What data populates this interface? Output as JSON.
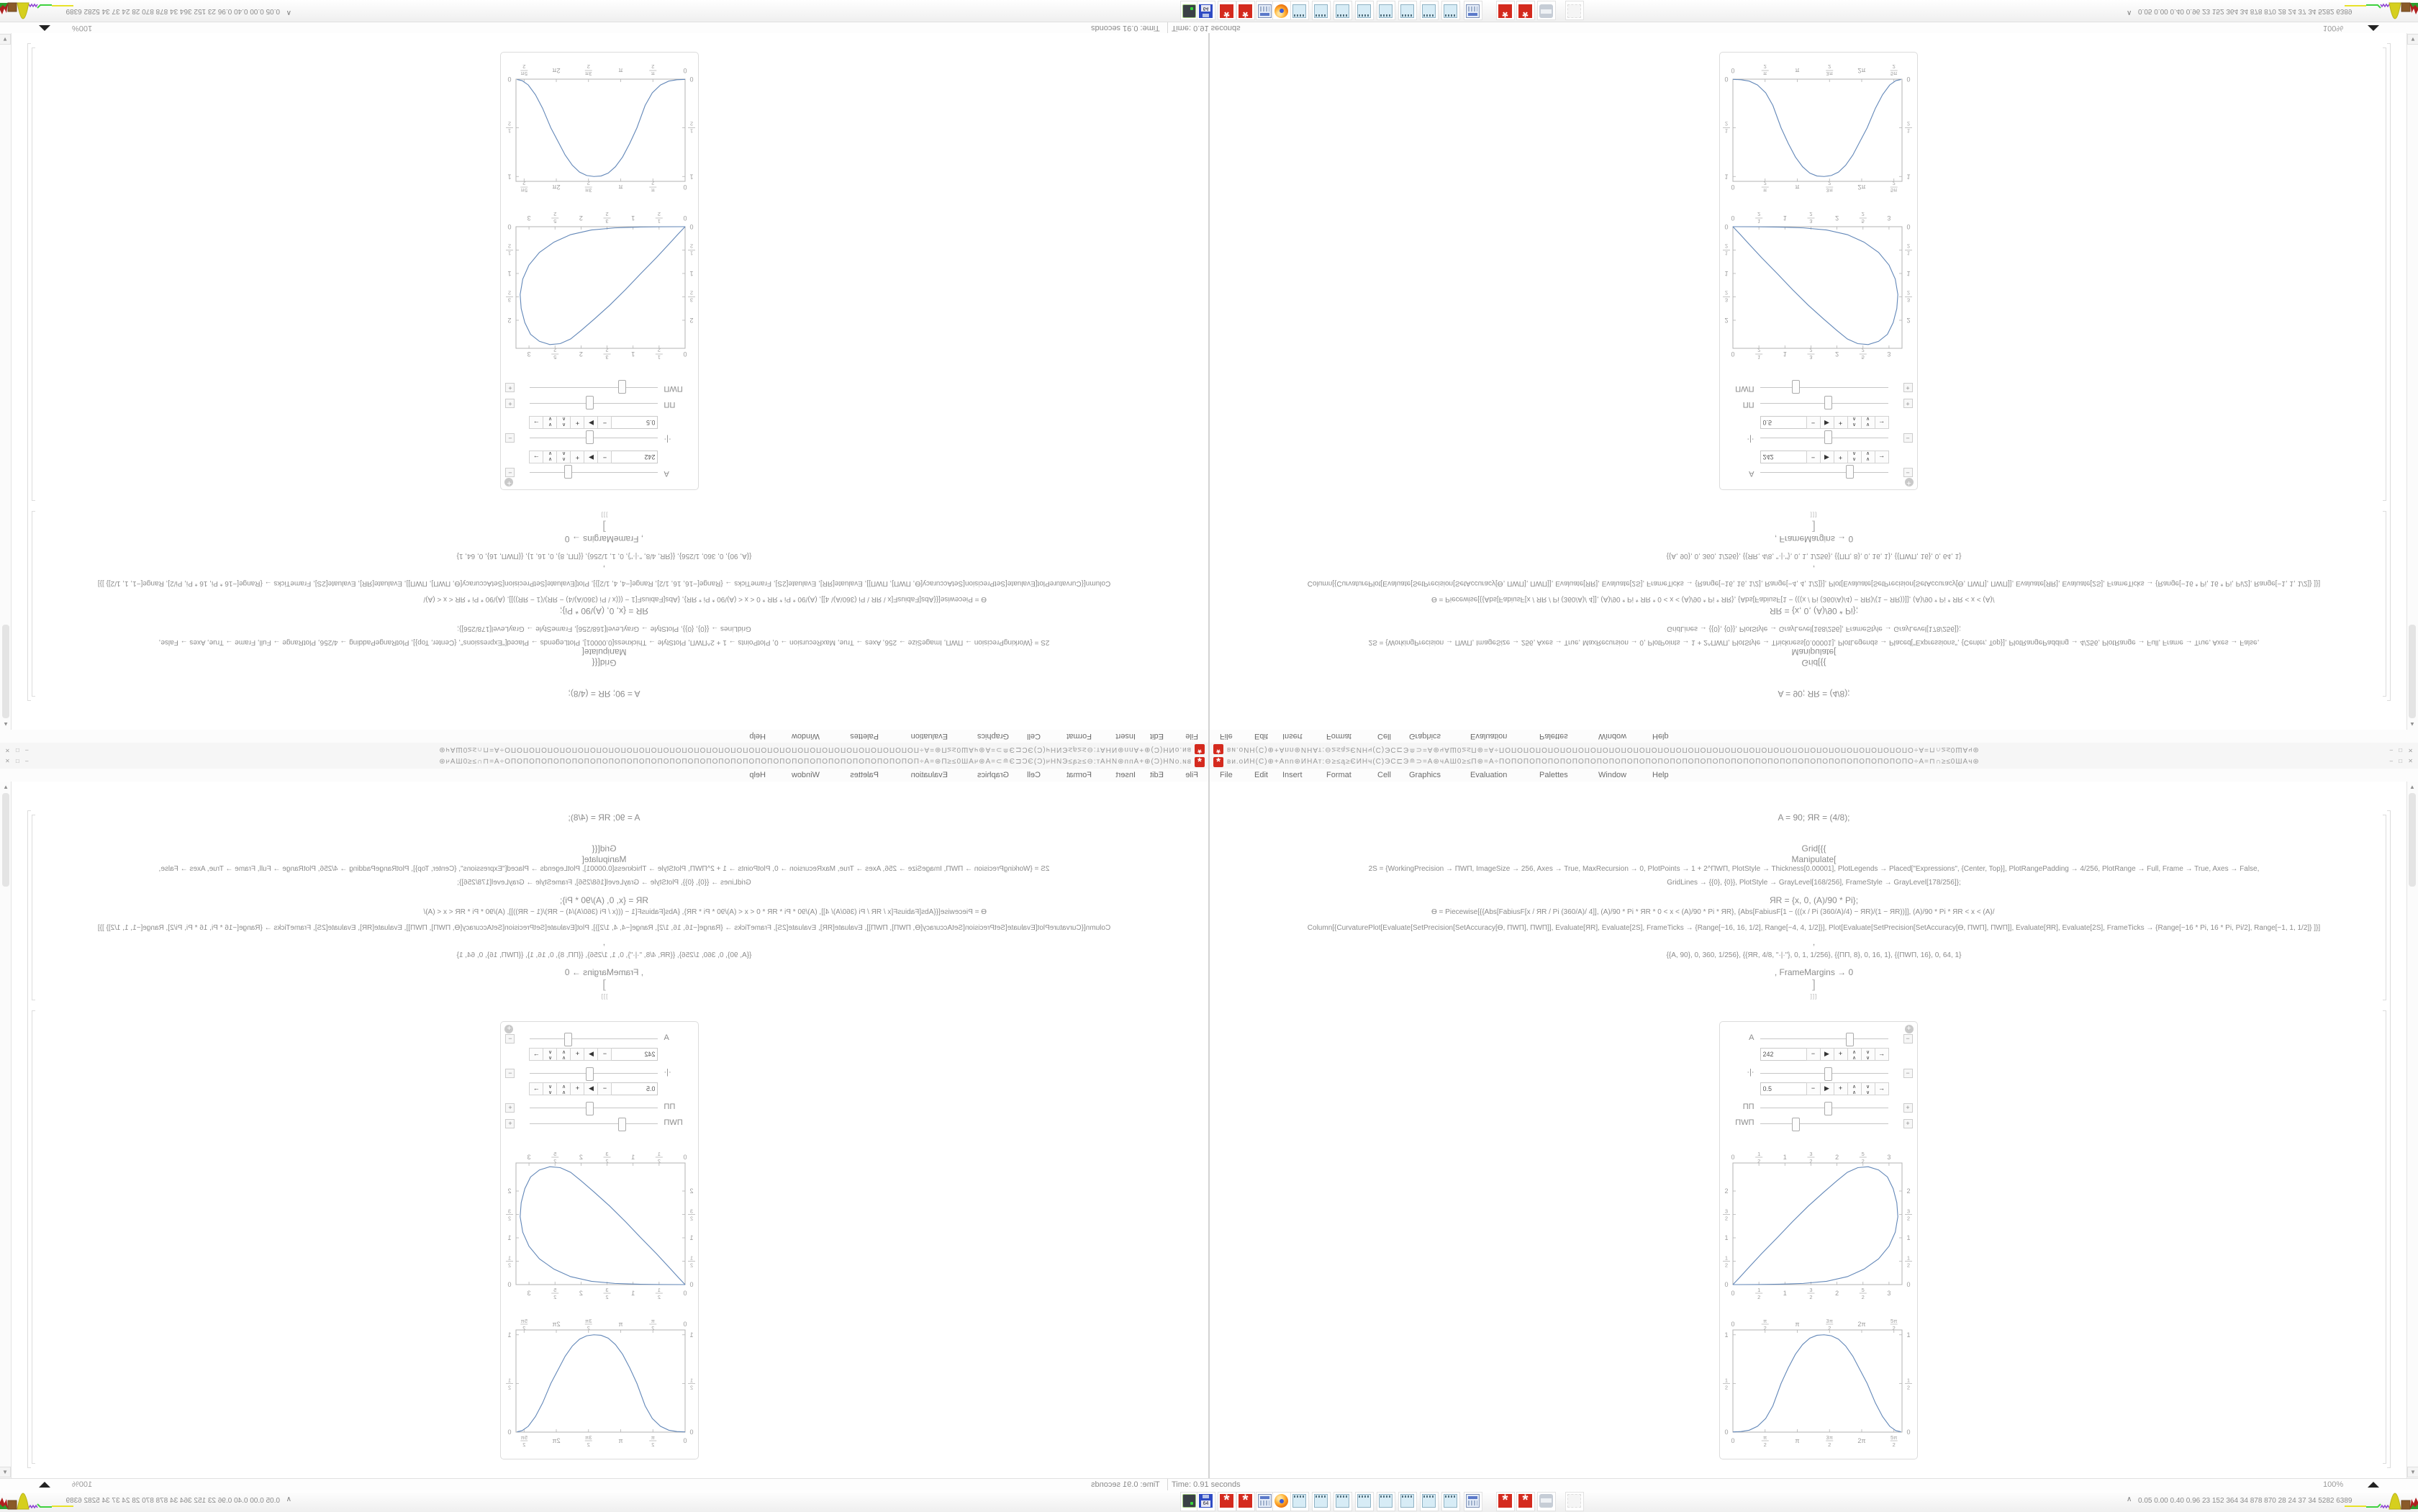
{
  "window": {
    "title": "ви.оИН(C)⊕+Аnn⊛ИНАт:⊖≥≤ą≥ЄИНч(C)ЭС⊏Э≘⊃=А⊛чАШ0≥≤П⊛=А÷ПОПОПОПОПОПОПОПОПОПОПОПОПОПОПОПОПОПОПОПОПОПОПОПОПОПОПОПОПОПОПОПОПОПО÷А=⊓∩≥≤0ШАч⊛",
    "title_icon": "mathematica-gear-icon",
    "window_buttons": "–  □  ✕",
    "menu_items": [
      "File",
      "Edit",
      "Insert",
      "Format",
      "Cell",
      "Graphics",
      "Evaluation",
      "Palettes",
      "Window",
      "Help"
    ],
    "code_lines": [
      {
        "text": "A = 90; ЯR = (4/8);",
        "size": "m"
      },
      {
        "text": "Grid[{{",
        "size": "m"
      },
      {
        "text": "Manipulate[",
        "size": "m"
      },
      {
        "text": "2S = {WorkingPrecision → ПWП, ImageSize → 256, Axes → True, MaxRecursion → 0, PlotPoints → 1 + 2^ПWП, PlotStyle → Thickness[0.00001], PlotLegends → Placed[\"Expressions\", {Center, Top}], PlotRangePadding → 4/256, PlotRange → Full, Frame → True, Axes → False,",
        "size": "s"
      },
      {
        "text": "GridLines → {{0}, {0}}, PlotStyle → GrayLevel[168/256], FrameStyle → GrayLevel[178/256]};",
        "size": "s"
      },
      {
        "text": "ЯR = {x, 0, (A)/90 * Pi};",
        "size": "m"
      },
      {
        "text": "Ѳ = Piecewise[{{Abs[FabiusF[x / ЯR / Pi (360/A)/ 4]], (A)/90 * Pi * ЯR * 0 < x < (A)/90 * Pi * ЯR}, {Abs[FabiusF[1 − (((x / Pi (360/A)/4) − ЯR)/(1 − ЯR))]], (A)/90 * Pi * ЯR < x < (A)/",
        "size": "s"
      },
      {
        "text": "Column[{CurvaturePlot[Evaluate[SetPrecision[SetAccuracy[Ѳ, ПWП], ПWП]], Evaluate[ЯR], Evaluate[2S], FrameTicks → {Range[−16, 16, 1/2], Range[−4, 4, 1/2]}], Plot[Evaluate[SetPrecision[SetAccuracy[Ѳ, ПWП], ПWП]], Evaluate[ЯR], Evaluate[2S], FrameTicks → {Range[−16 * Pi, 16 * Pi, Pi/2], Range[−1, 1, 1/2]} ]}]",
        "size": "s"
      },
      {
        "text": ",",
        "size": "m"
      },
      {
        "text": "{{A, 90}, 0, 360, 1/256}, {{ЯR, 4/8, \"·|·\"}, 0, 1, 1/256}, {{ПП, 8}, 0, 16, 1}, {{ПWП, 16}, 0, 64, 1}",
        "size": "s"
      },
      {
        "text": ", FrameMargins → 0",
        "size": "m"
      },
      {
        "text": "]",
        "size": "l"
      },
      {
        "text": "]]]",
        "size": "xs"
      }
    ],
    "manipulate": {
      "menu_icon": "plus-circle-icon",
      "sliders": [
        {
          "label": "A",
          "value": "242",
          "percent": 67,
          "expanded": true
        },
        {
          "label": "·|·",
          "value": "0.5",
          "percent": 50,
          "expanded": true
        },
        {
          "label": "ПП",
          "value": "",
          "percent": 50,
          "expanded": false
        },
        {
          "label": "ПWП",
          "value": "",
          "percent": 25,
          "expanded": false
        }
      ],
      "animator_buttons": [
        {
          "name": "step-down-button",
          "glyph": "−"
        },
        {
          "name": "play-button",
          "glyph": "▶"
        },
        {
          "name": "step-up-button",
          "glyph": "+"
        },
        {
          "name": "faster-button",
          "glyph": "∧∧"
        },
        {
          "name": "slower-button",
          "glyph": "∨∨"
        },
        {
          "name": "direction-button",
          "glyph": "→"
        }
      ]
    },
    "scrollbar": {
      "up": "▲",
      "down": "▼"
    }
  },
  "status_bar": {
    "time_label": "Time: 0.91 seconds",
    "zoom_value": "100%"
  },
  "taskbar": {
    "overflow_chevron": "∧",
    "tray_text": "0.05 0.00 0.40 0.96   23   152   364   34   878   870   28   24   37   34   5282 6389",
    "floppy_label": "64",
    "icon_cluster": [
      "drive-green",
      "floppy-64",
      "gear-red",
      "gear-red",
      "calculator",
      "firefox",
      "notepad",
      "notepad",
      "notepad",
      "notepad",
      "notepad",
      "notepad",
      "notepad",
      "notepad",
      "calculator",
      "gear-red",
      "gear-red",
      "scroll",
      "ghost"
    ]
  },
  "chart_data": [
    {
      "type": "line",
      "title": "",
      "xlabel": "",
      "ylabel": "",
      "xlim": [
        0,
        3.25
      ],
      "ylim": [
        0,
        2.6
      ],
      "grid": false,
      "frame": true,
      "xticks": [
        {
          "v": 0,
          "l": "0"
        },
        {
          "v": 0.5,
          "l": "1/2"
        },
        {
          "v": 1,
          "l": "1"
        },
        {
          "v": 1.5,
          "l": "3/2"
        },
        {
          "v": 2,
          "l": "2"
        },
        {
          "v": 2.5,
          "l": "5/2"
        },
        {
          "v": 3,
          "l": "3"
        }
      ],
      "yticks": [
        {
          "v": 0,
          "l": "0"
        },
        {
          "v": 0.5,
          "l": "1/2"
        },
        {
          "v": 1,
          "l": "1"
        },
        {
          "v": 1.5,
          "l": "3/2"
        },
        {
          "v": 2,
          "l": "2"
        }
      ],
      "series": [
        {
          "name": "teardrop-parametric-curve",
          "points": [
            [
              0,
              0
            ],
            [
              0.12,
              0.14
            ],
            [
              0.3,
              0.36
            ],
            [
              0.55,
              0.66
            ],
            [
              0.85,
              1.0
            ],
            [
              1.15,
              1.35
            ],
            [
              1.45,
              1.68
            ],
            [
              1.75,
              1.98
            ],
            [
              2.0,
              2.22
            ],
            [
              2.2,
              2.4
            ],
            [
              2.4,
              2.5
            ],
            [
              2.6,
              2.52
            ],
            [
              2.8,
              2.45
            ],
            [
              2.97,
              2.3
            ],
            [
              3.08,
              2.05
            ],
            [
              3.15,
              1.75
            ],
            [
              3.17,
              1.45
            ],
            [
              3.12,
              1.12
            ],
            [
              3.0,
              0.82
            ],
            [
              2.8,
              0.55
            ],
            [
              2.52,
              0.33
            ],
            [
              2.2,
              0.17
            ],
            [
              1.8,
              0.07
            ],
            [
              1.35,
              0.025
            ],
            [
              0.9,
              0.008
            ],
            [
              0.45,
              0.002
            ],
            [
              0.05,
              0
            ],
            [
              0,
              0
            ]
          ]
        }
      ]
    },
    {
      "type": "line",
      "title": "",
      "xlabel": "",
      "ylabel": "",
      "xlim": [
        0,
        8.25
      ],
      "ylim": [
        0,
        1.05
      ],
      "grid": false,
      "frame": true,
      "xticks": [
        {
          "v": 0,
          "l": "0"
        },
        {
          "v": 1.5708,
          "l": "π/2"
        },
        {
          "v": 3.1416,
          "l": "π"
        },
        {
          "v": 4.7124,
          "l": "3π/2"
        },
        {
          "v": 6.2832,
          "l": "2π"
        },
        {
          "v": 7.854,
          "l": "5π/2"
        }
      ],
      "yticks": [
        {
          "v": 0,
          "l": "0"
        },
        {
          "v": 0.5,
          "l": "1/2"
        },
        {
          "v": 1,
          "l": "1"
        }
      ],
      "series": [
        {
          "name": "fabius-bell-curve",
          "points": [
            [
              0,
              0.002
            ],
            [
              0.4,
              0.006
            ],
            [
              0.8,
              0.02
            ],
            [
              1.2,
              0.06
            ],
            [
              1.6,
              0.14
            ],
            [
              1.95,
              0.27
            ],
            [
              2.35,
              0.5
            ],
            [
              2.7,
              0.66
            ],
            [
              3.05,
              0.8
            ],
            [
              3.4,
              0.9
            ],
            [
              3.75,
              0.965
            ],
            [
              4.1,
              0.995
            ],
            [
              4.45,
              1.0
            ],
            [
              4.8,
              0.99
            ],
            [
              5.15,
              0.955
            ],
            [
              5.5,
              0.885
            ],
            [
              5.85,
              0.78
            ],
            [
              6.2,
              0.64
            ],
            [
              6.55,
              0.5
            ],
            [
              6.95,
              0.3
            ],
            [
              7.3,
              0.16
            ],
            [
              7.65,
              0.06
            ],
            [
              7.95,
              0.015
            ],
            [
              8.2,
              0.003
            ]
          ]
        }
      ]
    }
  ]
}
